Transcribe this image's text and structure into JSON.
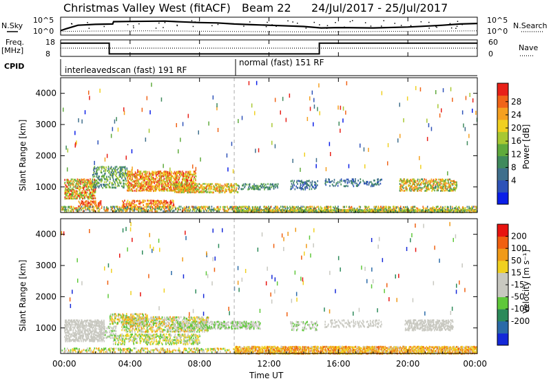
{
  "header": {
    "title": "Christmas Valley West (fitACF)",
    "beam": "Beam 22",
    "dates": "24/Jul/2017 - 25/Jul/2017"
  },
  "left_labels": {
    "nsky": "N.Sky",
    "freq_line1": "Freq.",
    "freq_line2": "[MHz]",
    "cpid": "CPID"
  },
  "right_labels": {
    "nsearch": "N.Search",
    "nave": "Nave"
  },
  "cpid_segments": [
    {
      "label": "interleavedscan (fast) 191 RF",
      "start_hour": 0,
      "end_hour": 10
    },
    {
      "label": "normal (fast) 151 RF",
      "start_hour": 10,
      "end_hour": 24
    }
  ],
  "chart_data": [
    {
      "type": "line",
      "name": "noise",
      "left_ticks": [
        "10^5",
        "10^0"
      ],
      "right_ticks": [
        "10^5",
        "10^0"
      ],
      "x_range_hours": [
        0,
        24
      ],
      "sky_points": [
        [
          0,
          0.25
        ],
        [
          0.3,
          0.35
        ],
        [
          1,
          0.55
        ],
        [
          2,
          0.6
        ],
        [
          3,
          0.62
        ],
        [
          3.05,
          0.75
        ],
        [
          4,
          0.76
        ],
        [
          6,
          0.78
        ],
        [
          7,
          0.74
        ],
        [
          8,
          0.7
        ],
        [
          9,
          0.68
        ],
        [
          10,
          0.62
        ],
        [
          11,
          0.58
        ],
        [
          12,
          0.55
        ],
        [
          14,
          0.48
        ],
        [
          15,
          0.4
        ],
        [
          16,
          0.42
        ],
        [
          18,
          0.4
        ],
        [
          20,
          0.45
        ],
        [
          22,
          0.55
        ],
        [
          23,
          0.62
        ],
        [
          24,
          0.65
        ]
      ],
      "search_points": [
        [
          0,
          0.2
        ],
        [
          1,
          0.22
        ],
        [
          3,
          0.23
        ],
        [
          5,
          0.24
        ],
        [
          8,
          0.22
        ],
        [
          10,
          0.2
        ],
        [
          12,
          0.19
        ],
        [
          15,
          0.18
        ],
        [
          18,
          0.2
        ],
        [
          21,
          0.22
        ],
        [
          24,
          0.24
        ]
      ]
    },
    {
      "type": "line",
      "name": "frequency",
      "left_ticks": [
        "18",
        "8"
      ],
      "right_ticks": [
        "60",
        "0"
      ],
      "x_range_hours": [
        0,
        24
      ],
      "freq_steps": [
        [
          0,
          0.8
        ],
        [
          2.8,
          0.8
        ],
        [
          2.8,
          0.15
        ],
        [
          14.9,
          0.15
        ],
        [
          14.9,
          0.8
        ],
        [
          24,
          0.8
        ]
      ],
      "nave_level": 0.5
    },
    {
      "type": "heatmap",
      "name": "power",
      "ylabel": "Slant Range [km]",
      "ylim": [
        180,
        4500
      ],
      "yticks": [
        1000,
        2000,
        3000,
        4000
      ],
      "x_range_hours": [
        0,
        24
      ],
      "colorbar_label": "Power [dB]",
      "colorbar_ticks": [
        "28",
        "24",
        "20",
        "16",
        "12",
        "8",
        "4"
      ],
      "colorbar_colors": [
        "#0a1ee8",
        "#2d52b8",
        "#3f6f8c",
        "#3f8a5c",
        "#5faa3c",
        "#a8c832",
        "#f0d020",
        "#f5a020",
        "#f06418",
        "#e82018"
      ],
      "seed": 7
    },
    {
      "type": "heatmap",
      "name": "velocity",
      "ylabel": "Slant Range [km]",
      "ylim": [
        180,
        4500
      ],
      "yticks": [
        1000,
        2000,
        3000,
        4000
      ],
      "x_range_hours": [
        0,
        24
      ],
      "colorbar_label": "Velocity [m s⁻¹]",
      "colorbar_ticks": [
        "200",
        "100",
        "50",
        "15",
        "-15",
        "-50",
        "-100",
        "-200"
      ],
      "colorbar_colors": [
        "#1428d8",
        "#2a6aa8",
        "#2c8a5a",
        "#5fc83a",
        "#c8c8c0",
        "#c8c8c0",
        "#f0d020",
        "#f09a18",
        "#f06010",
        "#e81410"
      ],
      "seed": 13
    }
  ],
  "x_axis": {
    "label": "Time UT",
    "ticks": [
      "00:00",
      "04:00",
      "08:00",
      "12:00",
      "16:00",
      "20:00",
      "00:00"
    ]
  },
  "colors": {
    "frame": "#000000",
    "gray_scatter": "#c6c6be",
    "dash": "#aaaaaa"
  }
}
